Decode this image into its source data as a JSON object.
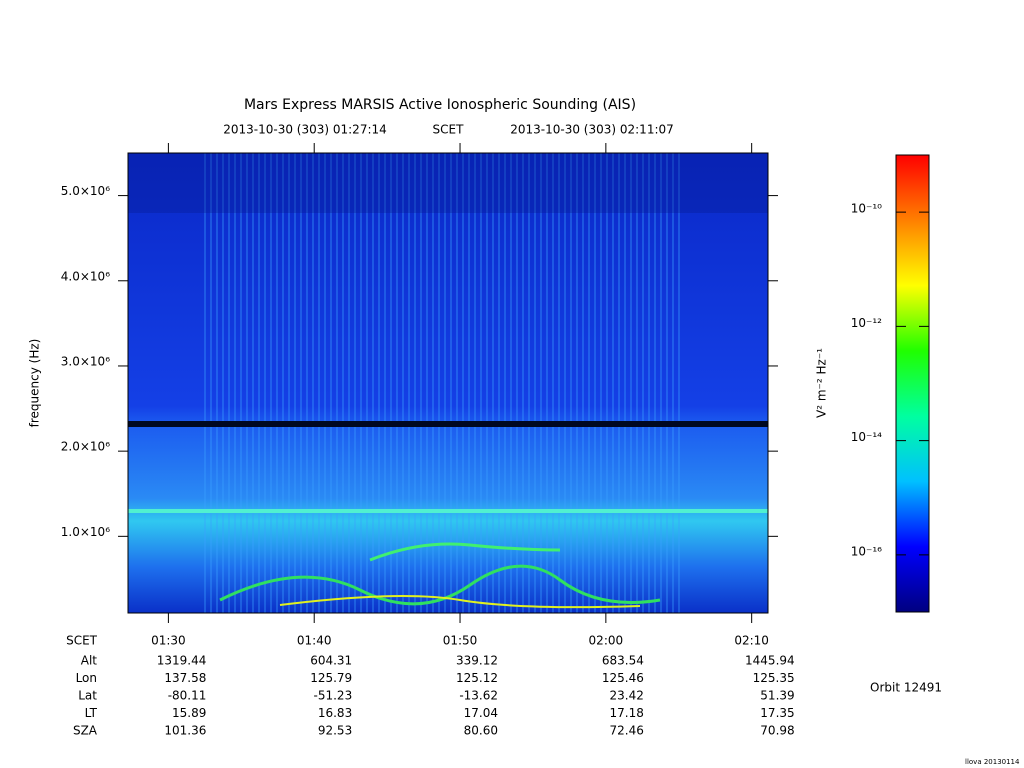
{
  "chart_data": {
    "type": "spectrogram",
    "title": "Mars Express MARSIS Active Ionospheric Sounding (AIS)",
    "subtitle_start": "2013-10-30 (303) 01:27:14",
    "subtitle_mid": "SCET",
    "subtitle_end": "2013-10-30 (303) 02:11:07",
    "y_label": "frequency (Hz)",
    "ylim": [
      100000,
      5500000
    ],
    "yticks": [
      {
        "value": 1000000,
        "label": "1.0×10⁶"
      },
      {
        "value": 2000000,
        "label": "2.0×10⁶"
      },
      {
        "value": 3000000,
        "label": "3.0×10⁶"
      },
      {
        "value": 4000000,
        "label": "4.0×10⁶"
      },
      {
        "value": 5000000,
        "label": "5.0×10⁶"
      }
    ],
    "xlim": [
      87.23,
      131.12
    ],
    "xticks": [
      {
        "value": 90,
        "label": "01:30"
      },
      {
        "value": 100,
        "label": "01:40"
      },
      {
        "value": 110,
        "label": "01:50"
      },
      {
        "value": 120,
        "label": "02:00"
      },
      {
        "value": 130,
        "label": "02:10"
      }
    ],
    "colorbar": {
      "label": "V² m⁻² Hz⁻¹",
      "log": true,
      "clim": [
        1e-17,
        1e-09
      ],
      "ticks": [
        {
          "value": 1e-10,
          "label": "10⁻¹⁰"
        },
        {
          "value": 1e-12,
          "label": "10⁻¹²"
        },
        {
          "value": 1e-14,
          "label": "10⁻¹⁴"
        },
        {
          "value": 1e-16,
          "label": "10⁻¹⁶"
        }
      ],
      "colors": [
        "#000080",
        "#0000ff",
        "#00c0ff",
        "#00ffa0",
        "#20ff00",
        "#ffff00",
        "#ff8000",
        "#ff0000"
      ]
    },
    "ephemeris": {
      "header": "SCET",
      "rows": [
        {
          "label": "Alt",
          "values": [
            "1319.44",
            "604.31",
            "339.12",
            "683.54",
            "1445.94"
          ]
        },
        {
          "label": "Lon",
          "values": [
            "137.58",
            "125.79",
            "125.12",
            "125.46",
            "125.35"
          ]
        },
        {
          "label": "Lat",
          "values": [
            "-80.11",
            "-51.23",
            "-13.62",
            "23.42",
            "51.39"
          ]
        },
        {
          "label": "LT",
          "values": [
            "15.89",
            "16.83",
            "17.04",
            "17.18",
            "17.35"
          ]
        },
        {
          "label": "SZA",
          "values": [
            "101.36",
            "92.53",
            "80.60",
            "72.46",
            "70.98"
          ]
        }
      ]
    },
    "orbit": "Orbit 12491",
    "footer": "llova 20130114"
  }
}
